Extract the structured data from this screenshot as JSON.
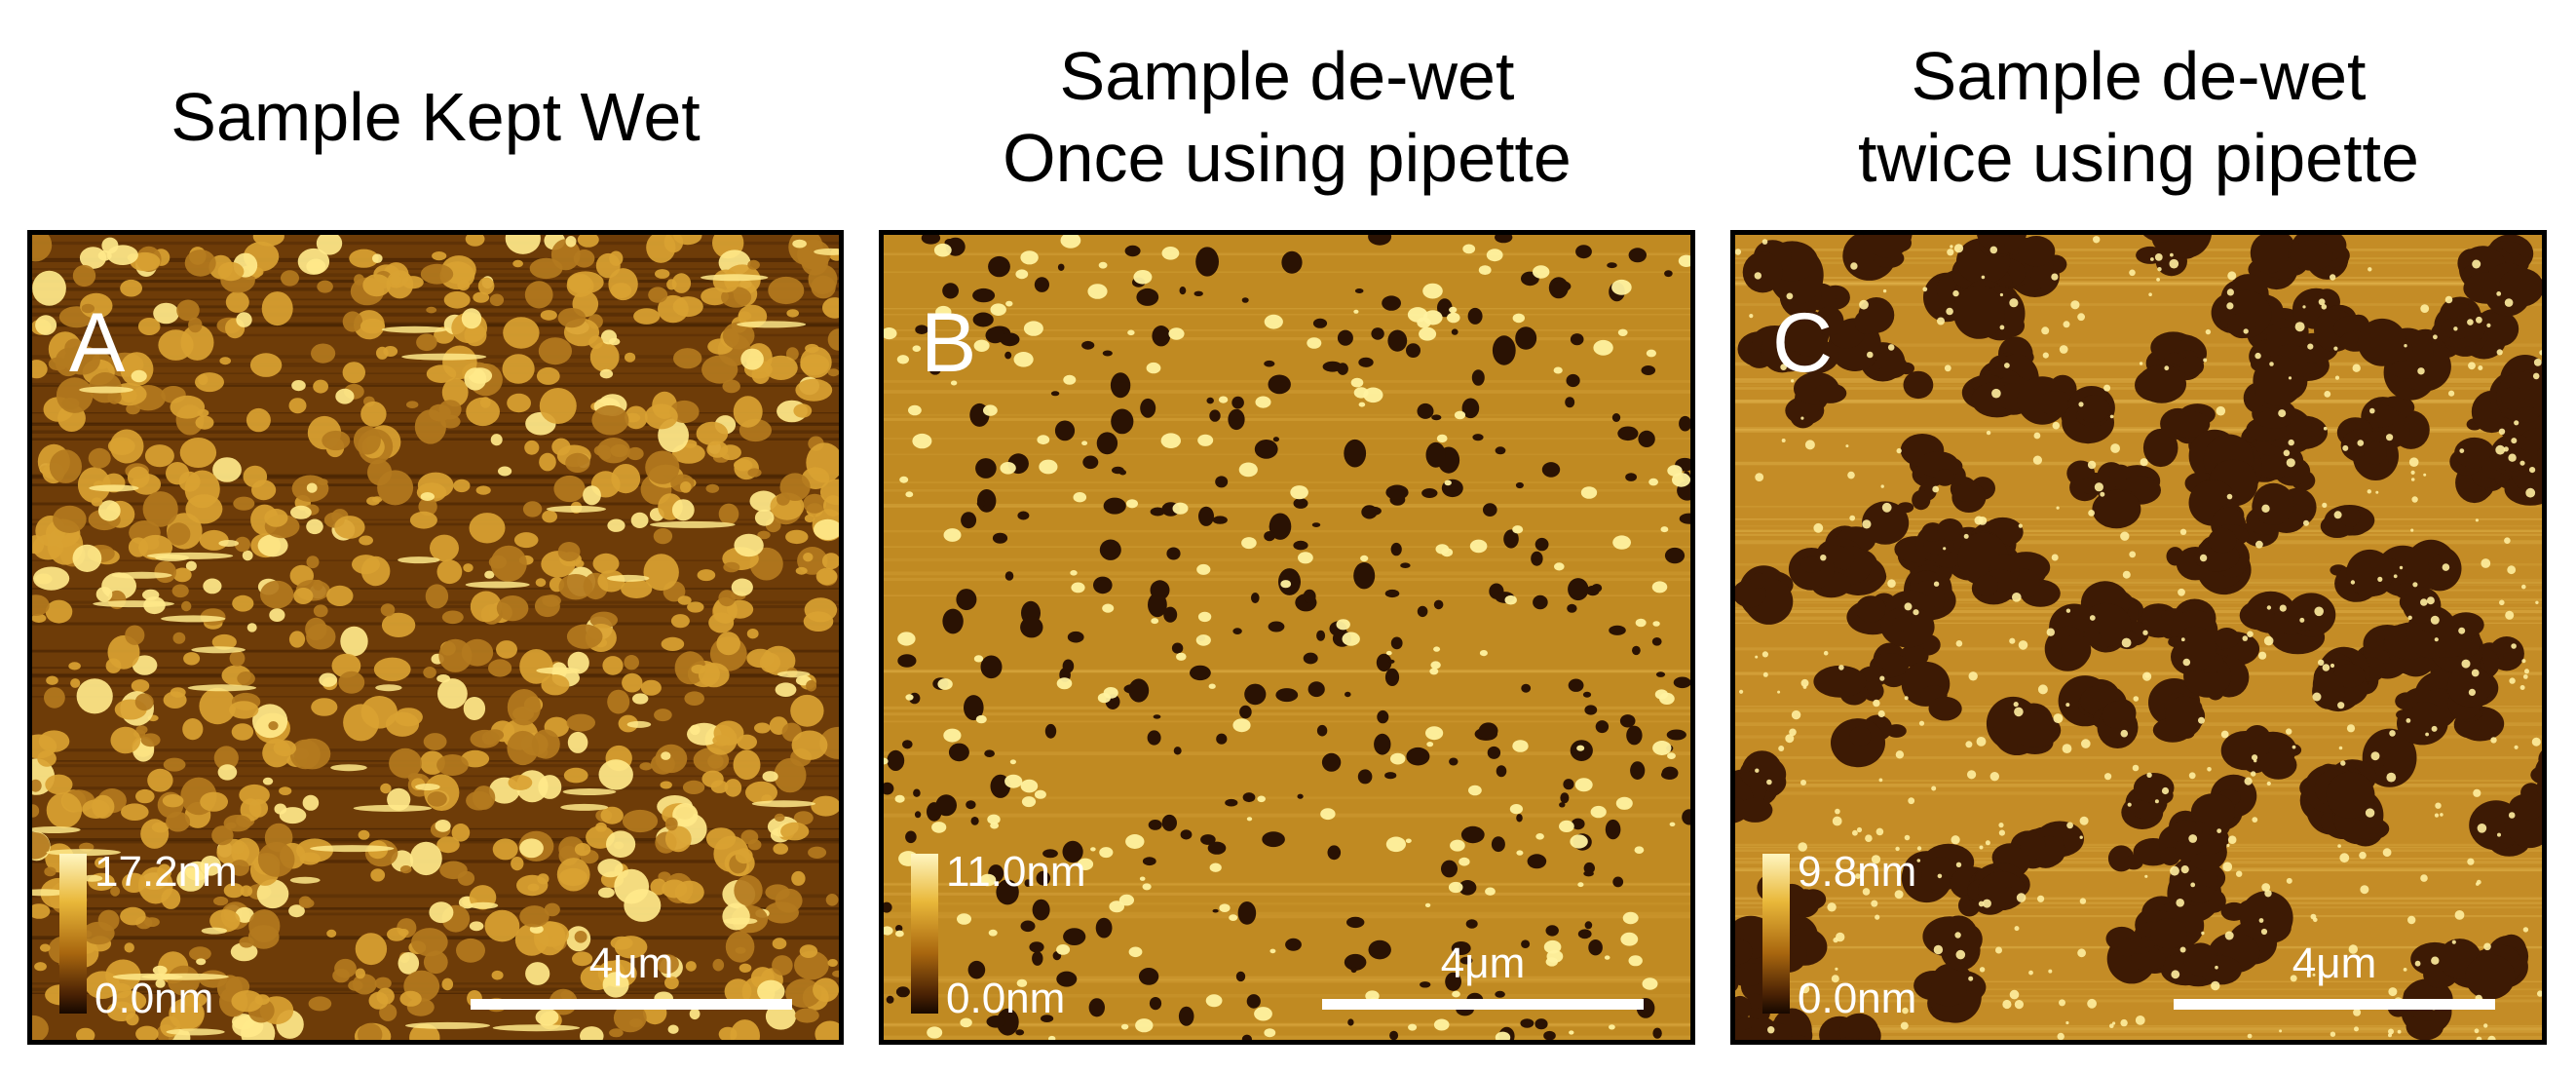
{
  "panels": [
    {
      "id": "a",
      "title": "Sample Kept Wet",
      "letter": "A",
      "colorbar_max": "17.2nm",
      "colorbar_min": "0.0nm",
      "scalebar_label": "4μm",
      "colors": {
        "substrate": "#6e3c08",
        "feature": "#d9a232",
        "highlight": "#ffe98a"
      }
    },
    {
      "id": "b",
      "title": "Sample de-wet\nOnce using pipette",
      "letter": "B",
      "colorbar_max": "11.0nm",
      "colorbar_min": "0.0nm",
      "scalebar_label": "4μm",
      "colors": {
        "substrate": "#c08a22",
        "hole": "#2a1203",
        "highlight": "#fff2a0"
      }
    },
    {
      "id": "c",
      "title": "Sample de-wet\ntwice using pipette",
      "letter": "C",
      "colorbar_max": "9.8nm",
      "colorbar_min": "0.0nm",
      "scalebar_label": "4μm",
      "colors": {
        "substrate": "#c48c26",
        "hole": "#3d1a04",
        "highlight": "#ffeea0"
      }
    }
  ]
}
